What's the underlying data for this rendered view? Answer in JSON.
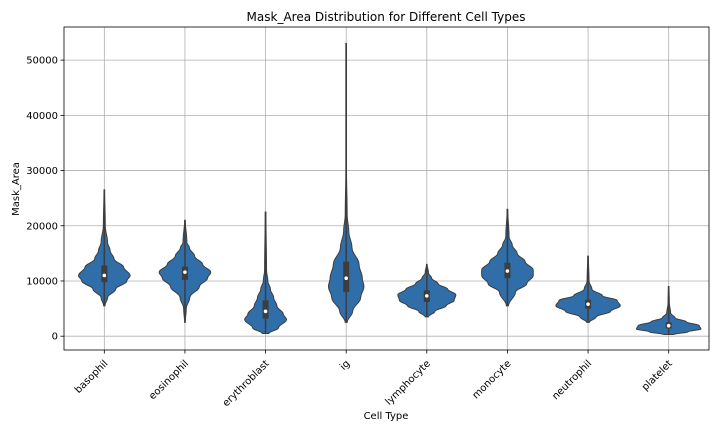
{
  "chart_data": {
    "type": "violin",
    "title": "Mask_Area Distribution for Different Cell Types",
    "xlabel": "Cell Type",
    "ylabel": "Mask_Area",
    "ylim": [
      -2500,
      56000
    ],
    "yticks": [
      0,
      10000,
      20000,
      30000,
      40000,
      50000
    ],
    "grid": true,
    "color": "#2f6ea8",
    "categories": [
      "basophil",
      "eosinophil",
      "erythroblast",
      "ig",
      "lymphocyte",
      "monocyte",
      "neutrophil",
      "platelet"
    ],
    "violins": [
      {
        "category": "basophil",
        "min": 5500,
        "max": 26500,
        "q1": 9800,
        "median": 11000,
        "q3": 12800,
        "profile": [
          [
            5500,
            0.02
          ],
          [
            7000,
            0.1
          ],
          [
            8500,
            0.35
          ],
          [
            10000,
            0.7
          ],
          [
            11000,
            0.8
          ],
          [
            12500,
            0.6
          ],
          [
            14000,
            0.3
          ],
          [
            15500,
            0.18
          ],
          [
            17000,
            0.1
          ],
          [
            20000,
            0.03
          ],
          [
            26500,
            0.01
          ]
        ]
      },
      {
        "category": "eosinophil",
        "min": 2500,
        "max": 21000,
        "q1": 10200,
        "median": 11600,
        "q3": 12600,
        "profile": [
          [
            2500,
            0.01
          ],
          [
            5000,
            0.04
          ],
          [
            7000,
            0.15
          ],
          [
            9000,
            0.45
          ],
          [
            10500,
            0.7
          ],
          [
            11600,
            0.8
          ],
          [
            13000,
            0.55
          ],
          [
            14500,
            0.3
          ],
          [
            16000,
            0.14
          ],
          [
            17000,
            0.06
          ],
          [
            21000,
            0.01
          ]
        ]
      },
      {
        "category": "erythroblast",
        "min": 500,
        "max": 22500,
        "q1": 3200,
        "median": 4500,
        "q3": 6500,
        "profile": [
          [
            500,
            0.1
          ],
          [
            1500,
            0.4
          ],
          [
            3000,
            0.65
          ],
          [
            4000,
            0.55
          ],
          [
            5500,
            0.35
          ],
          [
            7000,
            0.25
          ],
          [
            8500,
            0.15
          ],
          [
            10000,
            0.07
          ],
          [
            12000,
            0.03
          ],
          [
            22500,
            0.01
          ]
        ]
      },
      {
        "category": "ig",
        "min": 2500,
        "max": 53000,
        "q1": 8000,
        "median": 10500,
        "q3": 13500,
        "profile": [
          [
            2500,
            0.03
          ],
          [
            4500,
            0.2
          ],
          [
            7000,
            0.45
          ],
          [
            9000,
            0.55
          ],
          [
            10500,
            0.5
          ],
          [
            13000,
            0.4
          ],
          [
            16000,
            0.18
          ],
          [
            19000,
            0.08
          ],
          [
            22000,
            0.03
          ],
          [
            30000,
            0.01
          ],
          [
            53000,
            0.01
          ]
        ]
      },
      {
        "category": "lymphocyte",
        "min": 3500,
        "max": 13000,
        "q1": 6200,
        "median": 7300,
        "q3": 8300,
        "profile": [
          [
            3500,
            0.05
          ],
          [
            4500,
            0.25
          ],
          [
            5500,
            0.6
          ],
          [
            6500,
            0.85
          ],
          [
            7500,
            0.9
          ],
          [
            8500,
            0.65
          ],
          [
            9500,
            0.35
          ],
          [
            10500,
            0.15
          ],
          [
            11500,
            0.05
          ],
          [
            13000,
            0.01
          ]
        ]
      },
      {
        "category": "monocyte",
        "min": 5500,
        "max": 23000,
        "q1": 10500,
        "median": 11800,
        "q3": 13300,
        "profile": [
          [
            5500,
            0.03
          ],
          [
            8000,
            0.25
          ],
          [
            9500,
            0.6
          ],
          [
            11000,
            0.8
          ],
          [
            12000,
            0.8
          ],
          [
            13500,
            0.55
          ],
          [
            15000,
            0.3
          ],
          [
            16500,
            0.15
          ],
          [
            18000,
            0.05
          ],
          [
            23000,
            0.01
          ]
        ]
      },
      {
        "category": "neutrophil",
        "min": 2500,
        "max": 14500,
        "q1": 5000,
        "median": 5800,
        "q3": 6600,
        "profile": [
          [
            2500,
            0.04
          ],
          [
            3500,
            0.25
          ],
          [
            4500,
            0.7
          ],
          [
            5500,
            1.0
          ],
          [
            6500,
            0.9
          ],
          [
            7300,
            0.45
          ],
          [
            8500,
            0.12
          ],
          [
            10000,
            0.03
          ],
          [
            14500,
            0.01
          ]
        ]
      },
      {
        "category": "platelet",
        "min": 300,
        "max": 9000,
        "q1": 1400,
        "median": 1900,
        "q3": 2500,
        "profile": [
          [
            300,
            0.15
          ],
          [
            800,
            0.6
          ],
          [
            1300,
            1.0
          ],
          [
            1900,
            0.95
          ],
          [
            2600,
            0.55
          ],
          [
            3300,
            0.2
          ],
          [
            4200,
            0.06
          ],
          [
            6000,
            0.02
          ],
          [
            9000,
            0.01
          ]
        ]
      }
    ]
  }
}
